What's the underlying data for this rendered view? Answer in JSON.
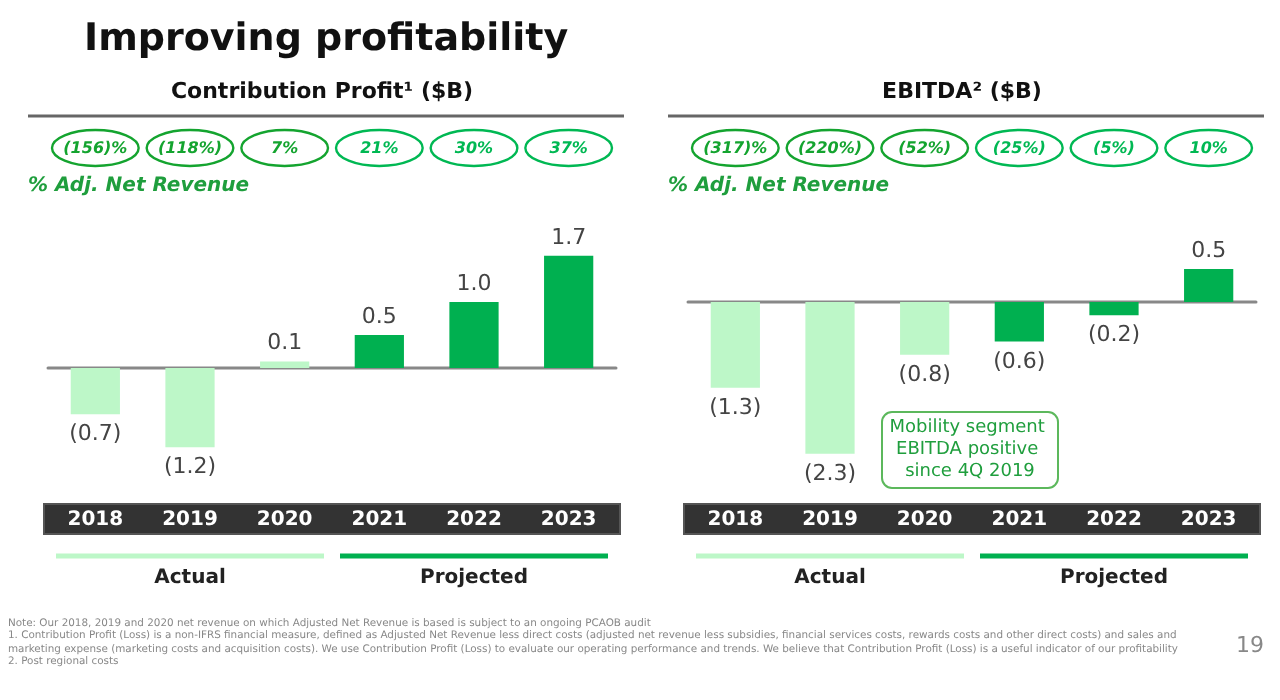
{
  "chart_data": [
    {
      "type": "bar",
      "title": "Improving profitability",
      "subtitle": "Contribution Profit¹ ($B)",
      "categories": [
        "2018",
        "2019",
        "2020",
        "2021",
        "2022",
        "2023"
      ],
      "values": [
        -0.7,
        -1.2,
        0.1,
        0.5,
        1.0,
        1.7
      ],
      "colors": [
        "#bdf7c8",
        "#bdf7c8",
        "#bdf7c8",
        "#00b050",
        "#00b050",
        "#00b050"
      ],
      "value_labels": [
        "(0.7)",
        "(1.2)",
        "0.1",
        "0.5",
        "1.0",
        "1.7"
      ],
      "annotations": [
        "(156)%",
        "(118%)",
        "7%",
        "21%",
        "30%",
        "37%",
        "% Adj. Net Revenue",
        "Actual",
        "Projected",
        "Note: Our 2018, 2019 and 2020 net revenue on which Adjusted Net Revenue is based is subject to an ongoing PCAOB audit",
        "1. Contribution Profit (Loss) is a non-IFRS financial measure, defined as Adjusted Net Revenue less direct costs (adjusted net revenue less subsidies, financial services costs, rewards costs and other direct costs) and sales and marketing expense (marketing costs and acquisition costs). We use Contribution Profit (Loss) to evaluate our operating performance and trends. We believe that Contribution Profit (Loss) is a useful indicator of our profitability",
        "2. Post regional costs",
        "19"
      ]
    },
    {
      "type": "bar",
      "subtitle": "EBITDA² ($B)",
      "categories": [
        "2018",
        "2019",
        "2020",
        "2021",
        "2022",
        "2023"
      ],
      "values": [
        -1.3,
        -2.3,
        -0.8,
        -0.6,
        -0.2,
        0.5
      ],
      "colors": [
        "#bdf7c8",
        "#bdf7c8",
        "#bdf7c8",
        "#00b050",
        "#00b050",
        "#00b050"
      ],
      "value_labels": [
        "(1.3)",
        "(2.3)",
        "(0.8)",
        "(0.6)",
        "(0.2)",
        "0.5"
      ],
      "annotations": [
        "(317)%",
        "(220%)",
        "(52%)",
        "(25%)",
        "(5%)",
        "10%",
        "% Adj. Net Revenue",
        "Actual",
        "Projected",
        "Mobility segment EBITDA positive since 4Q 2019"
      ]
    }
  ]
}
